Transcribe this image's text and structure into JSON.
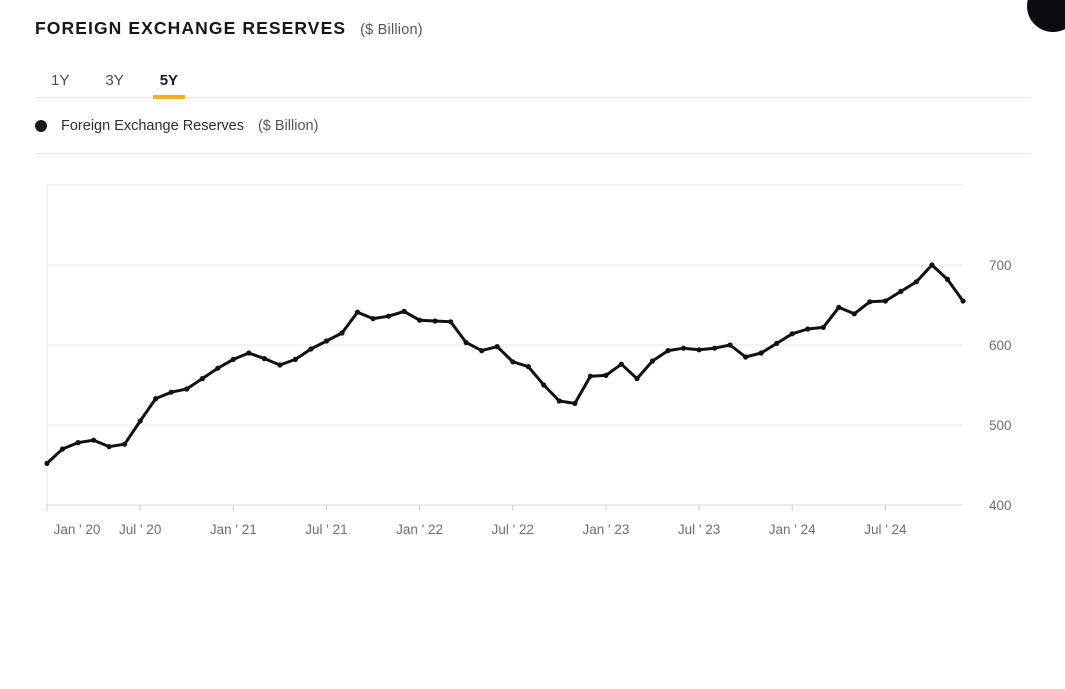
{
  "header": {
    "title": "FOREIGN EXCHANGE RESERVES",
    "unit": "($ Billion)"
  },
  "tabs": [
    {
      "label": "1Y",
      "active": false
    },
    {
      "label": "3Y",
      "active": false
    },
    {
      "label": "5Y",
      "active": true
    }
  ],
  "tab_accent_color": "#F2B01E",
  "legend": {
    "series_label": "Foreign Exchange Reserves",
    "unit": "($ Billion)",
    "marker_color": "#1b1b1f"
  },
  "chart_data": {
    "type": "line",
    "title": "Foreign Exchange Reserves ($ Billion)",
    "xlabel": "",
    "ylabel": "$ Billion",
    "line_color": "#111114",
    "marker": "dot",
    "grid": true,
    "ylim": [
      400,
      800
    ],
    "y_ticks": [
      400,
      500,
      600,
      700
    ],
    "x_tick_labels": [
      "Jan ' 20",
      "Jul ' 20",
      "Jan ' 21",
      "Jul ' 21",
      "Jan ' 22",
      "Jul ' 22",
      "Jan ' 23",
      "Jul ' 23",
      "Jan ' 24",
      "Jul ' 24"
    ],
    "x_tick_step_months": 6,
    "x": [
      "Jan 2020",
      "Feb 2020",
      "Mar 2020",
      "Apr 2020",
      "May 2020",
      "Jun 2020",
      "Jul 2020",
      "Aug 2020",
      "Sep 2020",
      "Oct 2020",
      "Nov 2020",
      "Dec 2020",
      "Jan 2021",
      "Feb 2021",
      "Mar 2021",
      "Apr 2021",
      "May 2021",
      "Jun 2021",
      "Jul 2021",
      "Aug 2021",
      "Sep 2021",
      "Oct 2021",
      "Nov 2021",
      "Dec 2021",
      "Jan 2022",
      "Feb 2022",
      "Mar 2022",
      "Apr 2022",
      "May 2022",
      "Jun 2022",
      "Jul 2022",
      "Aug 2022",
      "Sep 2022",
      "Oct 2022",
      "Nov 2022",
      "Dec 2022",
      "Jan 2023",
      "Feb 2023",
      "Mar 2023",
      "Apr 2023",
      "May 2023",
      "Jun 2023",
      "Jul 2023",
      "Aug 2023",
      "Sep 2023",
      "Oct 2023",
      "Nov 2023",
      "Dec 2023",
      "Jan 2024",
      "Feb 2024",
      "Mar 2024",
      "Apr 2024",
      "May 2024",
      "Jun 2024",
      "Jul 2024",
      "Aug 2024",
      "Sep 2024",
      "Oct 2024",
      "Nov 2024",
      "Dec 2024"
    ],
    "series": [
      {
        "name": "Foreign Exchange Reserves",
        "values": [
          452,
          470,
          478,
          481,
          473,
          476,
          505,
          533,
          541,
          545,
          558,
          571,
          582,
          590,
          583,
          575,
          582,
          595,
          605,
          615,
          641,
          633,
          636,
          642,
          631,
          630,
          629,
          603,
          593,
          598,
          579,
          573,
          550,
          530,
          527,
          561,
          562,
          576,
          558,
          580,
          593,
          596,
          594,
          596,
          600,
          585,
          590,
          602,
          614,
          620,
          622,
          647,
          639,
          654,
          655,
          667,
          679,
          700,
          682,
          655
        ]
      }
    ]
  }
}
